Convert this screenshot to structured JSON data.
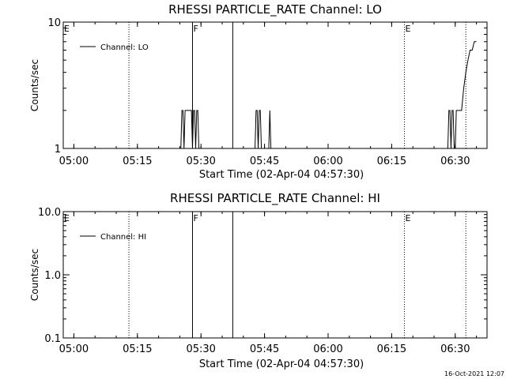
{
  "chart_data": [
    {
      "type": "line",
      "title": "RHESSI PARTICLE_RATE Channel: LO",
      "xlabel": "Start Time (02-Apr-04 04:57:30)",
      "ylabel": "Counts/sec",
      "y_scale": "log",
      "ylim": [
        1,
        10
      ],
      "xlim": [
        "04:57:30",
        "06:37:30"
      ],
      "x_ticks": [
        "05:00",
        "05:15",
        "05:30",
        "05:45",
        "06:00",
        "06:15",
        "06:30"
      ],
      "y_ticks": [
        "1",
        "10"
      ],
      "grid": false,
      "legend_position": "top-left",
      "series": [
        {
          "name": "Channel: LO",
          "x": [
            "05:25:00",
            "05:25:15",
            "05:25:30",
            "05:25:45",
            "05:26:00",
            "05:26:15",
            "05:26:30",
            "05:26:45",
            "05:27:00",
            "05:27:15",
            "05:27:30",
            "05:27:45",
            "05:28:00",
            "05:28:15",
            "05:28:30",
            "05:28:45",
            "05:29:00",
            "05:29:15",
            "05:29:30",
            "05:29:45",
            "05:30:00",
            "05:30:15",
            "05:30:30",
            "05:42:30",
            "05:42:45",
            "05:43:00",
            "05:43:15",
            "05:43:30",
            "05:43:45",
            "05:44:00",
            "05:44:15",
            "05:44:30",
            "05:44:45",
            "05:45:00",
            "05:45:15",
            "05:45:30",
            "05:45:45",
            "05:46:00",
            "05:46:15",
            "05:46:30",
            "05:46:45",
            "05:47:00",
            "05:47:15",
            "05:47:30",
            "05:47:45",
            "05:48:00",
            "05:48:15",
            "05:48:30",
            "06:28:00",
            "06:28:15",
            "06:28:30",
            "06:28:45",
            "06:29:00",
            "06:29:15",
            "06:29:30",
            "06:29:45",
            "06:30:00",
            "06:30:15",
            "06:30:30",
            "06:30:45",
            "06:31:00",
            "06:31:15",
            "06:31:30",
            "06:32:00",
            "06:32:30",
            "06:33:00",
            "06:33:30",
            "06:34:00",
            "06:34:30",
            "06:35:00"
          ],
          "y": [
            1,
            1,
            2,
            2,
            1,
            2,
            2,
            2,
            2,
            2,
            2,
            2,
            1,
            2,
            2,
            1,
            2,
            2,
            1,
            1,
            1,
            1,
            1,
            1,
            1,
            2,
            2,
            1,
            2,
            2,
            1,
            1,
            1,
            1,
            1,
            1,
            1,
            1,
            2,
            1,
            1,
            1,
            1,
            1,
            1,
            1,
            1,
            1,
            1,
            1,
            2,
            2,
            1,
            2,
            2,
            1,
            1,
            2,
            2,
            2,
            2,
            2,
            2,
            3,
            4,
            5,
            6,
            6,
            7,
            7
          ]
        }
      ],
      "vertical_lines": [
        {
          "x": "05:13:00",
          "style": "dotted",
          "label": ""
        },
        {
          "x": "05:28:00",
          "style": "solid",
          "label": "F"
        },
        {
          "x": "05:37:30",
          "style": "solid",
          "label": ""
        },
        {
          "x": "06:18:00",
          "style": "dotted",
          "label": "E"
        },
        {
          "x": "06:32:30",
          "style": "dotted",
          "label": ""
        }
      ],
      "corner_flag": "E"
    },
    {
      "type": "line",
      "title": "RHESSI PARTICLE_RATE Channel: HI",
      "xlabel": "Start Time (02-Apr-04 04:57:30)",
      "ylabel": "Counts/sec",
      "y_scale": "log",
      "ylim": [
        0.1,
        10
      ],
      "xlim": [
        "04:57:30",
        "06:37:30"
      ],
      "x_ticks": [
        "05:00",
        "05:15",
        "05:30",
        "05:45",
        "06:00",
        "06:15",
        "06:30"
      ],
      "y_ticks": [
        "0.1",
        "1.0",
        "10.0"
      ],
      "grid": false,
      "legend_position": "top-left",
      "series": [
        {
          "name": "Channel: HI",
          "x": [],
          "y": []
        }
      ],
      "vertical_lines": [
        {
          "x": "05:13:00",
          "style": "dotted",
          "label": ""
        },
        {
          "x": "05:28:00",
          "style": "solid",
          "label": "F"
        },
        {
          "x": "05:37:30",
          "style": "solid",
          "label": ""
        },
        {
          "x": "06:18:00",
          "style": "dotted",
          "label": "E"
        },
        {
          "x": "06:32:30",
          "style": "dotted",
          "label": ""
        }
      ],
      "corner_flag": "E"
    }
  ],
  "footer": {
    "timestamp": "16-Oct-2021 12:07"
  }
}
